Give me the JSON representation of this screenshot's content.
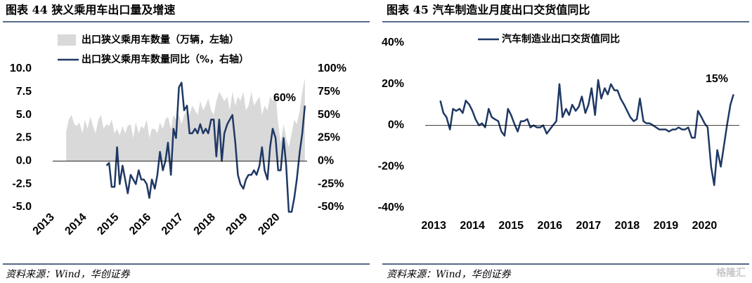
{
  "chart_data": [
    {
      "type": "combo",
      "title": "图表 44 狭义乘用车出口量及增速",
      "source": "资料来源：Wind，华创证券",
      "annotation": "60%",
      "x": [
        2013.42,
        2013.5,
        2013.58,
        2013.67,
        2013.75,
        2013.83,
        2013.92,
        2014.0,
        2014.08,
        2014.17,
        2014.25,
        2014.33,
        2014.42,
        2014.5,
        2014.58,
        2014.67,
        2014.75,
        2014.83,
        2014.92,
        2015.0,
        2015.08,
        2015.17,
        2015.25,
        2015.33,
        2015.42,
        2015.5,
        2015.58,
        2015.67,
        2015.75,
        2015.83,
        2015.92,
        2016.0,
        2016.08,
        2016.17,
        2016.25,
        2016.33,
        2016.42,
        2016.5,
        2016.58,
        2016.67,
        2016.75,
        2016.83,
        2016.92,
        2017.0,
        2017.08,
        2017.17,
        2017.25,
        2017.33,
        2017.42,
        2017.5,
        2017.58,
        2017.67,
        2017.75,
        2017.83,
        2017.92,
        2018.0,
        2018.08,
        2018.17,
        2018.25,
        2018.33,
        2018.42,
        2018.5,
        2018.58,
        2018.67,
        2018.75,
        2018.83,
        2018.92,
        2019.0,
        2019.08,
        2019.17,
        2019.25,
        2019.33,
        2019.42,
        2019.5,
        2019.58,
        2019.67,
        2019.75,
        2019.83,
        2019.92,
        2020.0,
        2020.08,
        2020.17,
        2020.25,
        2020.33,
        2020.42,
        2020.5,
        2020.58,
        2020.67,
        2020.75,
        2020.83
      ],
      "series": [
        {
          "name": "出口狭义乘用车数量（万辆，左轴）",
          "type": "area",
          "color": "#d9d9d9",
          "axis": "y",
          "values": [
            3.2,
            4.5,
            5.0,
            4.0,
            3.8,
            4.2,
            3.0,
            4.5,
            3.5,
            4.8,
            3.8,
            3.0,
            4.5,
            5.0,
            3.5,
            4.0,
            3.8,
            4.5,
            3.0,
            3.5,
            2.8,
            3.8,
            3.0,
            3.8,
            4.0,
            2.5,
            4.2,
            3.0,
            3.8,
            3.5,
            4.5,
            2.5,
            3.5,
            3.5,
            3.0,
            4.2,
            3.5,
            4.5,
            4.8,
            3.5,
            5.0,
            4.5,
            5.0,
            4.0,
            5.0,
            5.5,
            5.0,
            6.0,
            5.5,
            5.0,
            6.5,
            5.5,
            6.0,
            6.8,
            5.5,
            5.0,
            6.5,
            7.5,
            7.0,
            6.5,
            7.0,
            5.5,
            7.5,
            6.0,
            7.0,
            6.5,
            7.5,
            5.5,
            6.0,
            7.5,
            6.0,
            6.5,
            7.0,
            5.0,
            6.0,
            5.5,
            7.0,
            6.5,
            7.5,
            4.0,
            2.0,
            4.0,
            2.5,
            1.5,
            3.0,
            4.5,
            4.0,
            5.5,
            7.5,
            9.0
          ]
        },
        {
          "name": "出口狭义乘用车数量同比（%，右轴）",
          "type": "line",
          "color": "#1f3864",
          "axis": "y2",
          "values": [
            null,
            null,
            null,
            null,
            null,
            null,
            null,
            null,
            null,
            null,
            null,
            null,
            null,
            null,
            null,
            -5,
            -2,
            -28,
            -28,
            15,
            -25,
            -5,
            -20,
            -35,
            -15,
            -20,
            -25,
            -10,
            -20,
            -20,
            -25,
            -40,
            -20,
            -30,
            -15,
            10,
            -10,
            0,
            20,
            -15,
            35,
            25,
            80,
            85,
            55,
            60,
            30,
            30,
            35,
            30,
            40,
            30,
            35,
            30,
            45,
            45,
            5,
            45,
            0,
            30,
            40,
            45,
            50,
            20,
            -15,
            -25,
            -30,
            -20,
            -15,
            -15,
            -10,
            -15,
            -5,
            15,
            -10,
            -20,
            15,
            35,
            25,
            -10,
            -10,
            25,
            -5,
            -55,
            -55,
            -40,
            -20,
            10,
            30,
            60
          ]
        }
      ],
      "xlim": [
        2013,
        2020.9
      ],
      "xticks": [
        2013,
        2014,
        2015,
        2016,
        2017,
        2018,
        2019,
        2020
      ],
      "ylim": [
        -5,
        10
      ],
      "yticks": [
        {
          "value": 10,
          "label": "10.0"
        },
        {
          "value": 7.5,
          "label": "7.5"
        },
        {
          "value": 5,
          "label": "5.0"
        },
        {
          "value": 2.5,
          "label": "2.5"
        },
        {
          "value": 0,
          "label": "0.0"
        },
        {
          "value": -2.5,
          "label": "-2.5"
        },
        {
          "value": -5,
          "label": "-5.0"
        }
      ],
      "y2lim": [
        -50,
        100
      ],
      "y2ticks": [
        {
          "value": 100,
          "label": "100%"
        },
        {
          "value": 75,
          "label": "75%"
        },
        {
          "value": 50,
          "label": "50%"
        },
        {
          "value": 25,
          "label": "25%"
        },
        {
          "value": 0,
          "label": "0%"
        },
        {
          "value": -25,
          "label": "-25%"
        },
        {
          "value": -50,
          "label": "-50%"
        }
      ]
    },
    {
      "type": "line",
      "title": "图表 45 汽车制造业月度出口交货值同比",
      "source": "资料来源：Wind，华创证券",
      "annotation": "15%",
      "watermark": "格隆汇",
      "x": [
        2013.17,
        2013.25,
        2013.33,
        2013.42,
        2013.5,
        2013.58,
        2013.67,
        2013.75,
        2013.83,
        2013.92,
        2014.0,
        2014.08,
        2014.17,
        2014.25,
        2014.33,
        2014.42,
        2014.5,
        2014.58,
        2014.67,
        2014.75,
        2014.83,
        2014.92,
        2015.0,
        2015.08,
        2015.17,
        2015.25,
        2015.33,
        2015.42,
        2015.5,
        2015.58,
        2015.67,
        2015.75,
        2015.83,
        2015.92,
        2016.0,
        2016.08,
        2016.17,
        2016.25,
        2016.33,
        2016.42,
        2016.5,
        2016.58,
        2016.67,
        2016.75,
        2016.83,
        2016.92,
        2017.0,
        2017.08,
        2017.17,
        2017.25,
        2017.33,
        2017.42,
        2017.5,
        2017.58,
        2017.67,
        2017.75,
        2017.83,
        2017.92,
        2018.0,
        2018.08,
        2018.17,
        2018.25,
        2018.33,
        2018.42,
        2018.5,
        2018.58,
        2018.67,
        2018.75,
        2018.83,
        2018.92,
        2019.0,
        2019.08,
        2019.17,
        2019.25,
        2019.33,
        2019.42,
        2019.5,
        2019.58,
        2019.67,
        2019.75,
        2019.83,
        2019.92,
        2020.0,
        2020.08,
        2020.17,
        2020.25,
        2020.33,
        2020.42,
        2020.5,
        2020.58,
        2020.67,
        2020.75
      ],
      "series": [
        {
          "name": "汽车制造业出口交货值同比",
          "type": "line",
          "color": "#1f3864",
          "axis": "y",
          "values": [
            12,
            6,
            4,
            -2,
            8,
            7,
            8,
            6,
            12,
            10,
            7,
            3,
            0,
            1,
            -1,
            8,
            4,
            3,
            2,
            -3,
            -5,
            8,
            5,
            1,
            -3,
            2,
            2,
            3,
            -1,
            0,
            -1,
            -1,
            0,
            -4,
            -2,
            0,
            2,
            20,
            4,
            8,
            5,
            10,
            7,
            9,
            14,
            6,
            10,
            18,
            5,
            22,
            13,
            18,
            15,
            20,
            17,
            17,
            13,
            10,
            7,
            4,
            2,
            3,
            13,
            2,
            1,
            1,
            0,
            -1,
            -2,
            -2,
            -2,
            -3,
            -2,
            -2,
            -1,
            -2,
            -2,
            -1,
            -6,
            -6,
            7,
            4,
            1,
            -1,
            -20,
            -29,
            -12,
            -20,
            -10,
            0,
            10,
            15
          ]
        }
      ],
      "xlim": [
        2012.78,
        2020.9
      ],
      "xticks": [
        2013,
        2014,
        2015,
        2016,
        2017,
        2018,
        2019,
        2020
      ],
      "ylim": [
        -40,
        40
      ],
      "yticks": [
        {
          "value": 40,
          "label": "40%"
        },
        {
          "value": 20,
          "label": "20%"
        },
        {
          "value": 0,
          "label": "0%"
        },
        {
          "value": -20,
          "label": "-20%"
        },
        {
          "value": -40,
          "label": "-40%"
        }
      ]
    }
  ]
}
